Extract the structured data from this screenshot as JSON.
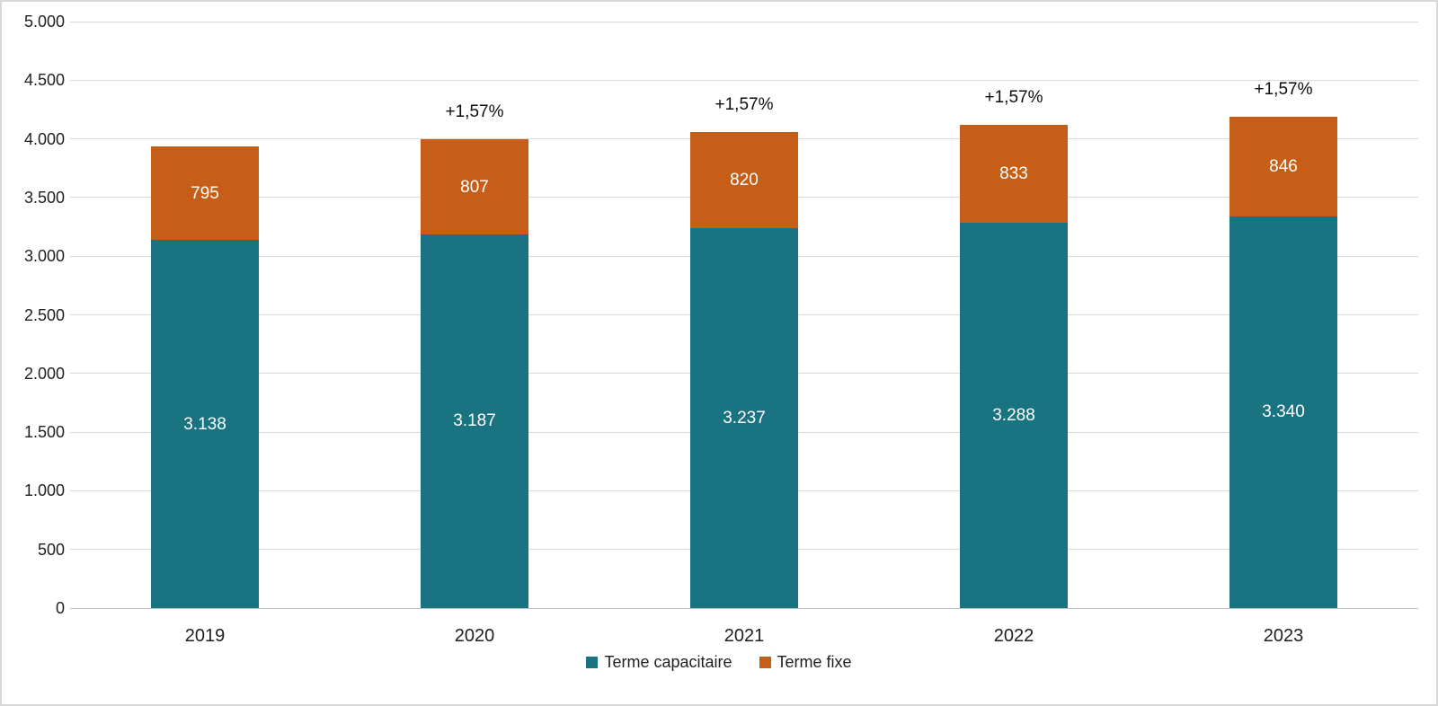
{
  "chart_data": {
    "type": "bar",
    "stacked": true,
    "title": "",
    "xlabel": "",
    "ylabel": "",
    "categories": [
      "2019",
      "2020",
      "2021",
      "2022",
      "2023"
    ],
    "series": [
      {
        "name": "Terme capacitaire",
        "color": "#1A7380",
        "values": [
          3138,
          3187,
          3237,
          3288,
          3340
        ],
        "labels": [
          "3.138",
          "3.187",
          "3.237",
          "3.288",
          "3.340"
        ],
        "label_color": "#ffffff"
      },
      {
        "name": "Terme fixe",
        "color": "#C65E17",
        "values": [
          795,
          807,
          820,
          833,
          846
        ],
        "labels": [
          "795",
          "807",
          "820",
          "833",
          "846"
        ],
        "label_color": "#ffffff"
      }
    ],
    "totals": [
      3933,
      3994,
      4057,
      4121,
      4186
    ],
    "annotations": [
      "",
      "+1,57%",
      "+1,57%",
      "+1,57%",
      "+1,57%"
    ],
    "ylim": [
      0,
      5000
    ],
    "ytick_step": 500,
    "ytick_labels": [
      "0",
      "500",
      "1.000",
      "1.500",
      "2.000",
      "2.500",
      "3.000",
      "3.500",
      "4.000",
      "4.500",
      "5.000"
    ],
    "grid": true,
    "gridline_color": "#d9d9d9",
    "axis_line_color": "#bfbfbf",
    "legend_position": "bottom"
  },
  "legend": {
    "items": [
      {
        "label": "Terme capacitaire",
        "color": "#1A7380"
      },
      {
        "label": "Terme fixe",
        "color": "#C65E17"
      }
    ]
  }
}
